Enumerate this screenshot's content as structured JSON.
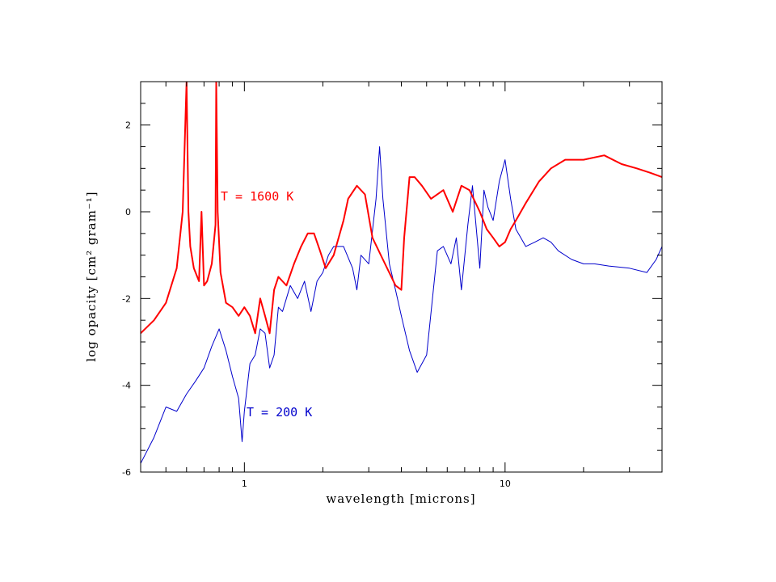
{
  "chart_data": {
    "type": "line",
    "title": "",
    "xlabel": "wavelength [microns]",
    "ylabel": "log opacity [cm² gram⁻¹]",
    "x_scale": "log",
    "xlim": [
      0.4,
      40
    ],
    "ylim": [
      -6,
      3
    ],
    "x_ticks_labeled": [
      {
        "value": 1,
        "label": "1"
      },
      {
        "value": 10,
        "label": "10"
      }
    ],
    "y_ticks_labeled": [
      {
        "value": 2,
        "label": "2"
      },
      {
        "value": 0,
        "label": "0"
      },
      {
        "value": -2,
        "label": "-2"
      },
      {
        "value": -4,
        "label": "-4"
      },
      {
        "value": -6,
        "label": "-6"
      }
    ],
    "grid": false,
    "series": [
      {
        "name": "T = 1600 K",
        "color": "#ff0000",
        "x": [
          0.4,
          0.45,
          0.5,
          0.55,
          0.58,
          0.6,
          0.61,
          0.62,
          0.64,
          0.67,
          0.685,
          0.7,
          0.72,
          0.75,
          0.775,
          0.78,
          0.79,
          0.81,
          0.85,
          0.9,
          0.95,
          1.0,
          1.05,
          1.1,
          1.15,
          1.2,
          1.25,
          1.3,
          1.35,
          1.45,
          1.55,
          1.65,
          1.75,
          1.85,
          1.95,
          2.05,
          2.2,
          2.4,
          2.5,
          2.7,
          2.9,
          3.1,
          3.4,
          3.8,
          4.0,
          4.1,
          4.3,
          4.5,
          4.8,
          5.2,
          5.8,
          6.3,
          6.8,
          7.3,
          8.0,
          8.5,
          9.0,
          9.5,
          10.0,
          10.5,
          11.0,
          12.0,
          13.5,
          15.0,
          17.0,
          20.0,
          24.0,
          28.0,
          32.0,
          36.0,
          40.0
        ],
        "y": [
          -2.8,
          -2.5,
          -2.1,
          -1.3,
          0.0,
          3.0,
          0.0,
          -0.8,
          -1.3,
          -1.6,
          0.0,
          -1.7,
          -1.6,
          -1.2,
          -0.3,
          3.0,
          0.0,
          -1.4,
          -2.1,
          -2.2,
          -2.4,
          -2.2,
          -2.4,
          -2.8,
          -2.0,
          -2.4,
          -2.8,
          -1.8,
          -1.5,
          -1.7,
          -1.2,
          -0.8,
          -0.5,
          -0.5,
          -0.9,
          -1.3,
          -1.0,
          -0.2,
          0.3,
          0.6,
          0.4,
          -0.6,
          -1.1,
          -1.7,
          -1.8,
          -0.6,
          0.8,
          0.8,
          0.6,
          0.3,
          0.5,
          0.0,
          0.6,
          0.5,
          0.0,
          -0.4,
          -0.6,
          -0.8,
          -0.7,
          -0.4,
          -0.2,
          0.2,
          0.7,
          1.0,
          1.2,
          1.2,
          1.3,
          1.1,
          1.0,
          0.9,
          0.8
        ]
      },
      {
        "name": "T = 200 K",
        "color": "#0000cc",
        "x": [
          0.4,
          0.45,
          0.5,
          0.55,
          0.6,
          0.65,
          0.7,
          0.75,
          0.8,
          0.85,
          0.9,
          0.95,
          0.98,
          1.0,
          1.05,
          1.1,
          1.15,
          1.2,
          1.25,
          1.3,
          1.35,
          1.4,
          1.5,
          1.6,
          1.7,
          1.8,
          1.9,
          2.0,
          2.1,
          2.2,
          2.4,
          2.6,
          2.7,
          2.8,
          3.0,
          3.2,
          3.3,
          3.4,
          3.6,
          3.8,
          4.0,
          4.3,
          4.6,
          5.0,
          5.5,
          5.8,
          6.2,
          6.5,
          6.8,
          7.2,
          7.5,
          8.0,
          8.3,
          8.6,
          9.0,
          9.5,
          10.0,
          10.5,
          11.0,
          11.5,
          12.0,
          13.0,
          14.0,
          15.0,
          16.0,
          18.0,
          20.0,
          22.0,
          25.0,
          30.0,
          35.0,
          38.0,
          40.0
        ],
        "y": [
          -5.8,
          -5.2,
          -4.5,
          -4.6,
          -4.2,
          -3.9,
          -3.6,
          -3.1,
          -2.7,
          -3.2,
          -3.8,
          -4.3,
          -5.3,
          -4.6,
          -3.5,
          -3.3,
          -2.7,
          -2.8,
          -3.6,
          -3.3,
          -2.2,
          -2.3,
          -1.7,
          -2.0,
          -1.6,
          -2.3,
          -1.6,
          -1.4,
          -1.0,
          -0.8,
          -0.8,
          -1.3,
          -1.8,
          -1.0,
          -1.2,
          0.3,
          1.5,
          0.3,
          -1.2,
          -1.8,
          -2.4,
          -3.2,
          -3.7,
          -3.3,
          -0.9,
          -0.8,
          -1.2,
          -0.6,
          -1.8,
          -0.3,
          0.6,
          -1.3,
          0.5,
          0.1,
          -0.2,
          0.7,
          1.2,
          0.3,
          -0.4,
          -0.6,
          -0.8,
          -0.7,
          -0.6,
          -0.7,
          -0.9,
          -1.1,
          -1.2,
          -1.2,
          -1.25,
          -1.3,
          -1.4,
          -1.1,
          -0.8
        ]
      }
    ]
  }
}
